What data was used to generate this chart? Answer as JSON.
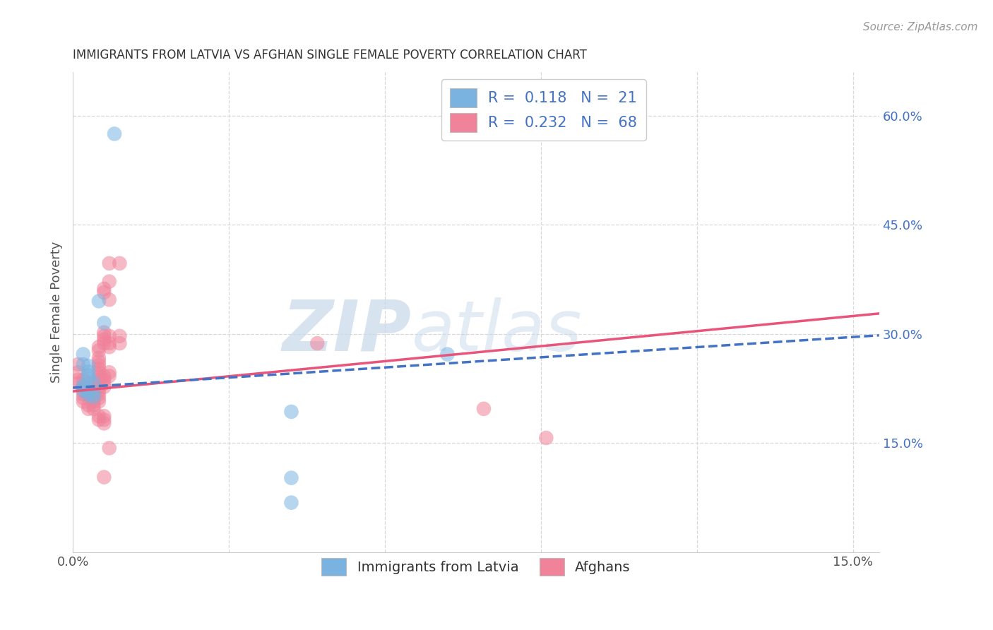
{
  "title": "IMMIGRANTS FROM LATVIA VS AFGHAN SINGLE FEMALE POVERTY CORRELATION CHART",
  "source": "Source: ZipAtlas.com",
  "ylabel": "Single Female Poverty",
  "y_ticks_right": [
    0.15,
    0.3,
    0.45,
    0.6
  ],
  "y_tick_labels_right": [
    "15.0%",
    "30.0%",
    "45.0%",
    "60.0%"
  ],
  "xlim": [
    0.0,
    0.155
  ],
  "ylim": [
    0.0,
    0.66
  ],
  "blue_points": [
    [
      0.008,
      0.575
    ],
    [
      0.005,
      0.345
    ],
    [
      0.006,
      0.315
    ],
    [
      0.002,
      0.272
    ],
    [
      0.002,
      0.258
    ],
    [
      0.003,
      0.256
    ],
    [
      0.003,
      0.248
    ],
    [
      0.003,
      0.243
    ],
    [
      0.003,
      0.238
    ],
    [
      0.004,
      0.233
    ],
    [
      0.002,
      0.229
    ],
    [
      0.002,
      0.226
    ],
    [
      0.002,
      0.222
    ],
    [
      0.003,
      0.221
    ],
    [
      0.004,
      0.218
    ],
    [
      0.003,
      0.216
    ],
    [
      0.004,
      0.213
    ],
    [
      0.072,
      0.272
    ],
    [
      0.042,
      0.193
    ],
    [
      0.042,
      0.102
    ],
    [
      0.042,
      0.068
    ]
  ],
  "pink_points": [
    [
      0.001,
      0.258
    ],
    [
      0.001,
      0.247
    ],
    [
      0.001,
      0.237
    ],
    [
      0.002,
      0.237
    ],
    [
      0.001,
      0.232
    ],
    [
      0.002,
      0.227
    ],
    [
      0.002,
      0.222
    ],
    [
      0.002,
      0.217
    ],
    [
      0.002,
      0.212
    ],
    [
      0.002,
      0.207
    ],
    [
      0.003,
      0.202
    ],
    [
      0.003,
      0.197
    ],
    [
      0.003,
      0.232
    ],
    [
      0.003,
      0.227
    ],
    [
      0.003,
      0.222
    ],
    [
      0.003,
      0.217
    ],
    [
      0.004,
      0.217
    ],
    [
      0.004,
      0.212
    ],
    [
      0.004,
      0.207
    ],
    [
      0.004,
      0.202
    ],
    [
      0.004,
      0.197
    ],
    [
      0.005,
      0.282
    ],
    [
      0.005,
      0.277
    ],
    [
      0.005,
      0.267
    ],
    [
      0.005,
      0.262
    ],
    [
      0.005,
      0.257
    ],
    [
      0.005,
      0.252
    ],
    [
      0.005,
      0.247
    ],
    [
      0.005,
      0.242
    ],
    [
      0.005,
      0.237
    ],
    [
      0.005,
      0.232
    ],
    [
      0.005,
      0.227
    ],
    [
      0.005,
      0.222
    ],
    [
      0.005,
      0.217
    ],
    [
      0.005,
      0.212
    ],
    [
      0.005,
      0.207
    ],
    [
      0.005,
      0.187
    ],
    [
      0.005,
      0.182
    ],
    [
      0.006,
      0.362
    ],
    [
      0.006,
      0.357
    ],
    [
      0.006,
      0.302
    ],
    [
      0.006,
      0.297
    ],
    [
      0.006,
      0.292
    ],
    [
      0.006,
      0.287
    ],
    [
      0.006,
      0.242
    ],
    [
      0.006,
      0.237
    ],
    [
      0.006,
      0.232
    ],
    [
      0.006,
      0.227
    ],
    [
      0.006,
      0.187
    ],
    [
      0.006,
      0.182
    ],
    [
      0.006,
      0.177
    ],
    [
      0.006,
      0.103
    ],
    [
      0.007,
      0.397
    ],
    [
      0.007,
      0.372
    ],
    [
      0.007,
      0.347
    ],
    [
      0.007,
      0.297
    ],
    [
      0.007,
      0.287
    ],
    [
      0.007,
      0.282
    ],
    [
      0.007,
      0.247
    ],
    [
      0.007,
      0.242
    ],
    [
      0.007,
      0.143
    ],
    [
      0.009,
      0.397
    ],
    [
      0.009,
      0.297
    ],
    [
      0.009,
      0.287
    ],
    [
      0.079,
      0.197
    ],
    [
      0.091,
      0.157
    ],
    [
      0.047,
      0.287
    ]
  ],
  "blue_line_x": [
    0.0,
    0.155
  ],
  "blue_line_y": [
    0.226,
    0.298
  ],
  "pink_line_x": [
    0.0,
    0.155
  ],
  "pink_line_y": [
    0.221,
    0.328
  ],
  "watermark_zip": "ZIP",
  "watermark_atlas": "atlas",
  "background_color": "#ffffff",
  "grid_color": "#d8d8d8",
  "blue_color": "#7ab3e0",
  "pink_color": "#f0829a",
  "blue_line_color": "#4472c4",
  "pink_line_color": "#e8547a",
  "legend_r_color": "#4472c4",
  "legend_n_color": "#4472c4",
  "legend_text_color": "#333333"
}
